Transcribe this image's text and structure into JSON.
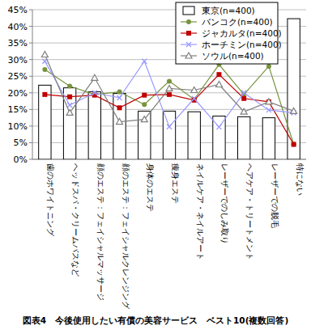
{
  "chart_data": {
    "type": "bar",
    "title": "図表4　今後使用したい有償の美容サービス　ベスト10(複数回答)",
    "categories": [
      "歯のホワイトニング",
      "ヘッドスパ・クリームバスなど",
      "顔のエステ：フェイシャルマッサージ",
      "顔のエステ：フェイシャルクレンジング",
      "身体のエステ",
      "痩身エステ",
      "ネイルケア・ネイルアート",
      "レーザーでのしみ取り",
      "ヘアケア・トリートメント",
      "レーザーでの脱毛",
      "特にない"
    ],
    "series": [
      {
        "name": "東京(n=400)",
        "type": "bar",
        "color": "#ffffff",
        "values": [
          22.3,
          21.5,
          20.3,
          19.8,
          14.5,
          14.5,
          14.3,
          13.0,
          12.8,
          12.5,
          42.3
        ]
      },
      {
        "name": "バンコク(n=400)",
        "type": "line",
        "color": "#77933c",
        "marker": "circle",
        "values": [
          27.0,
          22.0,
          19.5,
          20.3,
          16.5,
          23.5,
          18.0,
          28.5,
          19.5,
          28.0,
          4.5
        ]
      },
      {
        "name": "ジャカルタ(n=400)",
        "type": "line",
        "color": "#c00000",
        "marker": "square",
        "values": [
          19.5,
          18.8,
          19.3,
          15.5,
          19.3,
          19.5,
          17.8,
          25.5,
          18.3,
          17.3,
          4.5
        ]
      },
      {
        "name": "ホーチミン(n=400)",
        "type": "line",
        "color": "#9999ff",
        "marker": "x",
        "values": [
          29.5,
          16.3,
          20.0,
          18.5,
          29.5,
          9.8,
          18.3,
          9.7,
          20.0,
          14.8,
          14.0
        ]
      },
      {
        "name": "ソウル(n=400)",
        "type": "line",
        "color": "#7f7f7f",
        "marker": "triangle",
        "values": [
          31.5,
          14.0,
          24.5,
          11.3,
          12.0,
          21.3,
          20.8,
          22.5,
          14.3,
          17.3,
          14.5
        ]
      }
    ],
    "ylim": [
      0,
      45
    ],
    "yticks": [
      {
        "value": 0,
        "label": "0%"
      },
      {
        "value": 5,
        "label": "5%"
      },
      {
        "value": 10,
        "label": "10%"
      },
      {
        "value": 15,
        "label": "15%"
      },
      {
        "value": 20,
        "label": "20%"
      },
      {
        "value": 25,
        "label": "25%"
      },
      {
        "value": 30,
        "label": "30%"
      },
      {
        "value": 35,
        "label": "35%"
      },
      {
        "value": 40,
        "label": "40%"
      },
      {
        "value": 45,
        "label": "45%"
      }
    ],
    "grid": true,
    "legend": "upper right"
  }
}
